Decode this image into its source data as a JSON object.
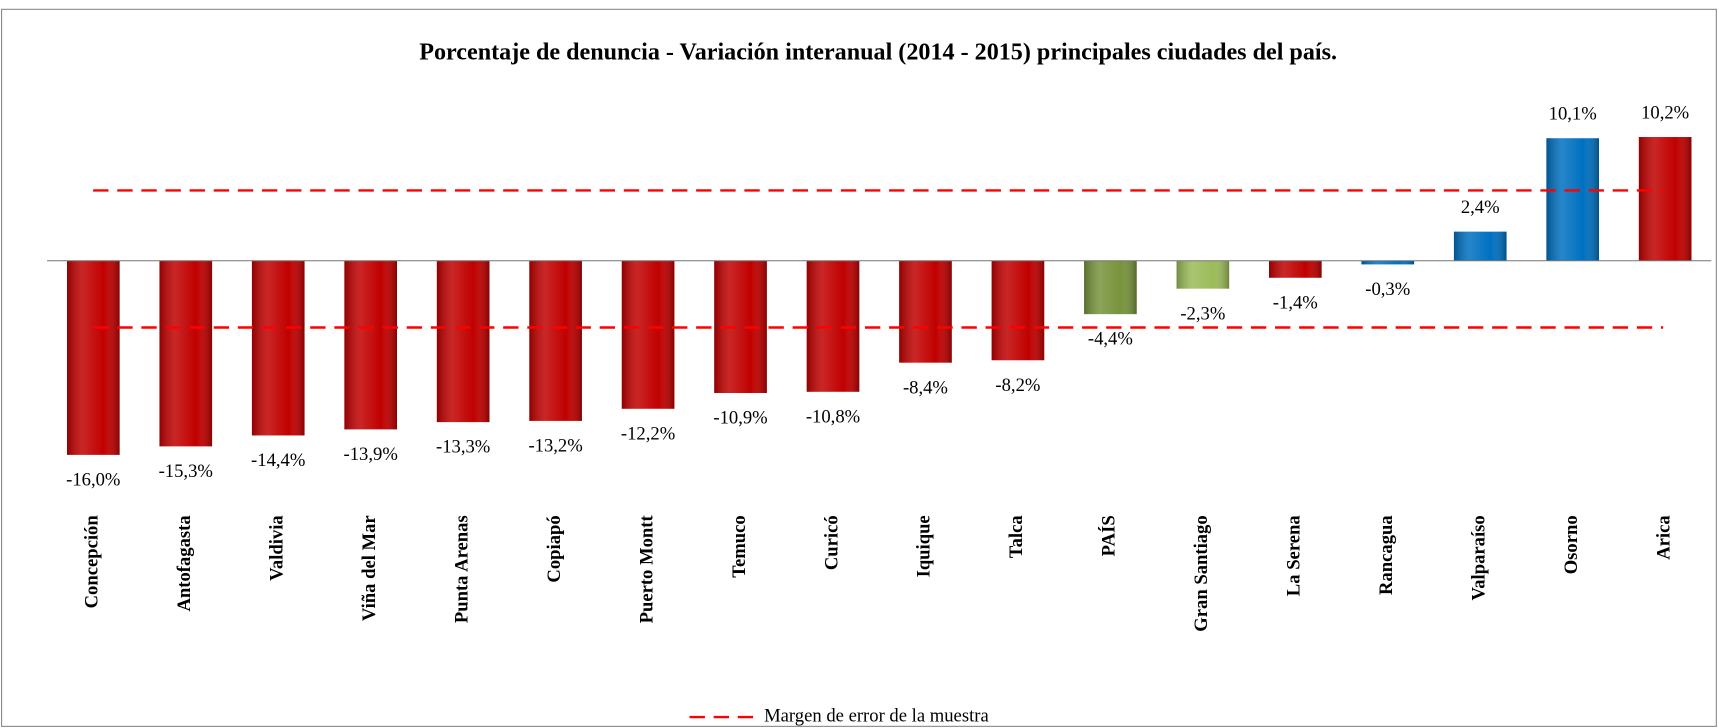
{
  "chart_data": {
    "type": "bar",
    "title": "Porcentaje de denuncia - Variación interanual (2014 - 2015) principales ciudades del país.",
    "categories": [
      "Concepción",
      "Antofagasta",
      "Valdivia",
      "Viña del Mar",
      "Punta Arenas",
      "Copiapó",
      "Puerto Montt",
      "Temuco",
      "Curicó",
      "Iquique",
      "Talca",
      "PAÍS",
      "Gran Santiago",
      "La Serena",
      "Rancagua",
      "Valparaíso",
      "Osorno",
      "Arica"
    ],
    "values": [
      -16.0,
      -15.3,
      -14.4,
      -13.9,
      -13.3,
      -13.2,
      -12.2,
      -10.9,
      -10.8,
      -8.4,
      -8.2,
      -4.4,
      -2.3,
      -1.4,
      -0.3,
      2.4,
      10.1,
      10.2
    ],
    "value_labels": [
      "-16,0%",
      "-15,3%",
      "-14,4%",
      "-13,9%",
      "-13,3%",
      "-13,2%",
      "-12,2%",
      "-10,9%",
      "-10,8%",
      "-8,4%",
      "-8,2%",
      "-4,4%",
      "-2,3%",
      "-1,4%",
      "-0,3%",
      "2,4%",
      "10,1%",
      "10,2%"
    ],
    "colors": [
      "#c00000",
      "#c00000",
      "#c00000",
      "#c00000",
      "#c00000",
      "#c00000",
      "#c00000",
      "#c00000",
      "#c00000",
      "#c00000",
      "#c00000",
      "#77933c",
      "#9bbb59",
      "#c00000",
      "#0070c0",
      "#0070c0",
      "#0070c0",
      "#c00000"
    ],
    "ylim": [
      -18,
      13
    ],
    "reference_lines": {
      "name": "Margen de error de la muestra",
      "color": "#ff0000",
      "values": [
        5.8,
        -5.5
      ]
    }
  }
}
